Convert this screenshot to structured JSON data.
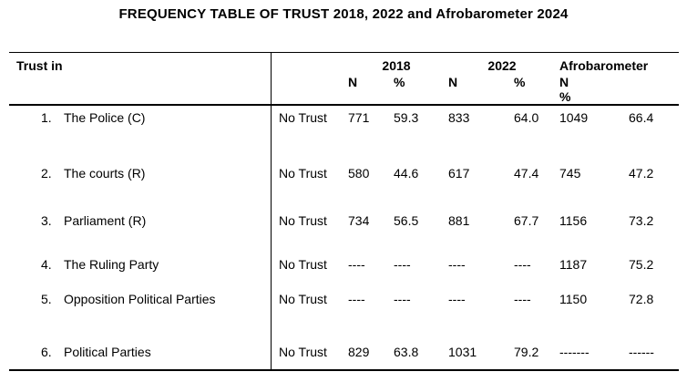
{
  "title": "FREQUENCY TABLE OF TRUST 2018, 2022 and Afrobarometer 2024",
  "table": {
    "corner_header": "Trust in",
    "groups": [
      {
        "label": "2018"
      },
      {
        "label": "2022"
      },
      {
        "label": "Afrobarometer"
      }
    ],
    "col_n": "N",
    "col_pct": "%",
    "rows": [
      {
        "num": "1.",
        "label": "The Police (C)",
        "trust": "No Trust",
        "values": [
          "771",
          "59.3",
          "833",
          "64.0",
          "1049",
          "66.4"
        ]
      },
      {
        "num": "2.",
        "label": "The courts (R)",
        "trust": "No Trust",
        "values": [
          "580",
          "44.6",
          "617",
          "47.4",
          "745",
          "47.2"
        ]
      },
      {
        "num": "3.",
        "label": "Parliament (R)",
        "trust": "No Trust",
        "values": [
          "734",
          "56.5",
          "881",
          "67.7",
          "1156",
          "73.2"
        ]
      },
      {
        "num": "4.",
        "label": "The Ruling Party",
        "trust": "No Trust",
        "values": [
          "----",
          "----",
          "----",
          "----",
          "1187",
          "75.2"
        ]
      },
      {
        "num": "5.",
        "label": "Opposition Political Parties",
        "trust": "No Trust",
        "values": [
          "----",
          "----",
          "----",
          "----",
          "1150",
          "72.8"
        ]
      },
      {
        "num": "6.",
        "label": "Political Parties",
        "trust": "No Trust",
        "values": [
          "829",
          "63.8",
          "1031",
          "79.2",
          "-------",
          "------"
        ]
      }
    ]
  }
}
